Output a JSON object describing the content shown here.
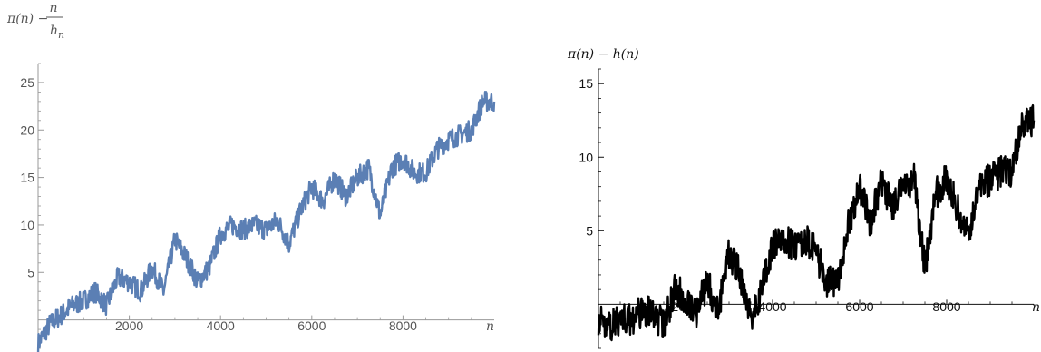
{
  "chart_data": [
    {
      "type": "line",
      "ylabel_num": "π(n) − ",
      "ylabel_frac_num": "n",
      "ylabel_frac_den": "h",
      "ylabel_frac_den_sub": "n",
      "xlabel": "n",
      "color": "#5b7fb4",
      "xlim": [
        0,
        10000
      ],
      "ylim": [
        -3,
        27
      ],
      "x_ticks": [
        "2000",
        "4000",
        "6000",
        "8000"
      ],
      "x_tick_values": [
        2000,
        4000,
        6000,
        8000
      ],
      "y_ticks": [
        "5",
        "10",
        "15",
        "20",
        "25"
      ],
      "y_tick_values": [
        5,
        10,
        15,
        20,
        25
      ],
      "series": [
        {
          "x": [
            0,
            250,
            500,
            750,
            1000,
            1250,
            1500,
            1750,
            2000,
            2250,
            2500,
            2750,
            3000,
            3250,
            3500,
            3750,
            4000,
            4250,
            4500,
            4750,
            5000,
            5250,
            5500,
            5750,
            6000,
            6250,
            6500,
            6750,
            7000,
            7250,
            7500,
            7750,
            8000,
            8250,
            8500,
            8750,
            9000,
            9250,
            9500,
            9750,
            10000
          ],
          "values": [
            -2.5,
            -0.5,
            0.5,
            1.5,
            2,
            3,
            1.5,
            4.5,
            4,
            3,
            5.5,
            3,
            8.5,
            6.5,
            4,
            5.5,
            9,
            10,
            9.5,
            10,
            9.5,
            10.5,
            8,
            11.5,
            14,
            12.5,
            15,
            13,
            15,
            16,
            11,
            16,
            17,
            15.5,
            15.5,
            18,
            19,
            19.5,
            20,
            23,
            23
          ]
        }
      ]
    },
    {
      "type": "line",
      "ylabel": "π(n) − h(n)",
      "xlabel": "n",
      "color": "#000000",
      "xlim": [
        0,
        10000
      ],
      "ylim": [
        -3,
        16
      ],
      "x_ticks": [
        "2000",
        "4000",
        "6000",
        "8000"
      ],
      "x_tick_values": [
        2000,
        4000,
        6000,
        8000
      ],
      "y_ticks": [
        "5",
        "10",
        "15"
      ],
      "y_tick_values": [
        5,
        10,
        15
      ],
      "series": [
        {
          "x": [
            0,
            250,
            500,
            750,
            1000,
            1250,
            1500,
            1750,
            2000,
            2250,
            2500,
            2750,
            3000,
            3250,
            3500,
            3750,
            4000,
            4250,
            4500,
            4750,
            5000,
            5250,
            5500,
            5750,
            6000,
            6250,
            6500,
            6750,
            7000,
            7250,
            7500,
            7750,
            8000,
            8250,
            8500,
            8750,
            9000,
            9250,
            9500,
            9750,
            10000
          ],
          "values": [
            -1,
            -1.5,
            -1,
            -1,
            -0.5,
            -0.5,
            -1.5,
            1,
            0.5,
            -0.5,
            1.5,
            -0.5,
            3.5,
            2,
            -1,
            1,
            4,
            4.5,
            4,
            4.5,
            3.5,
            1.5,
            1.5,
            5.5,
            8,
            5.5,
            8.5,
            6.5,
            8,
            8.5,
            2.5,
            7.5,
            8.5,
            6.5,
            4.5,
            8,
            8.5,
            9,
            9,
            12.5,
            12.5
          ]
        }
      ]
    }
  ]
}
